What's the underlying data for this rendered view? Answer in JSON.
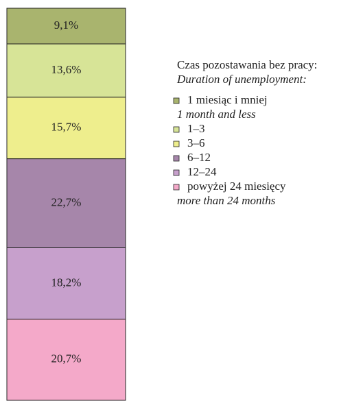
{
  "chart_data": {
    "type": "stacked_bar_100",
    "legend_title": "Czas pozostawania bez pracy:",
    "legend_subtitle": "Duration of unemployment:",
    "ylim": [
      0,
      100
    ],
    "legend": "right",
    "series": [
      {
        "name": "1 miesiąc i mniej",
        "name_en": "1 month and less",
        "color": "#a9b46e",
        "values": [
          9.1
        ],
        "value_labels": [
          "9,1%"
        ]
      },
      {
        "name": "1–3",
        "color": "#d7e497",
        "values": [
          13.6
        ],
        "value_labels": [
          "13,6%"
        ]
      },
      {
        "name": "3–6",
        "color": "#eeee8d",
        "values": [
          15.7
        ],
        "value_labels": [
          "15,7%"
        ]
      },
      {
        "name": "6–12",
        "color": "#a686aa",
        "values": [
          22.7
        ],
        "value_labels": [
          "22,7%"
        ]
      },
      {
        "name": "12–24",
        "color": "#c7a0cc",
        "values": [
          18.2
        ],
        "value_labels": [
          "18,2%"
        ]
      },
      {
        "name": "powyżej 24 miesięcy",
        "name_en": "more than 24 months",
        "color": "#f4a9c9",
        "values": [
          20.7
        ],
        "value_labels": [
          "20,7%"
        ]
      }
    ]
  }
}
